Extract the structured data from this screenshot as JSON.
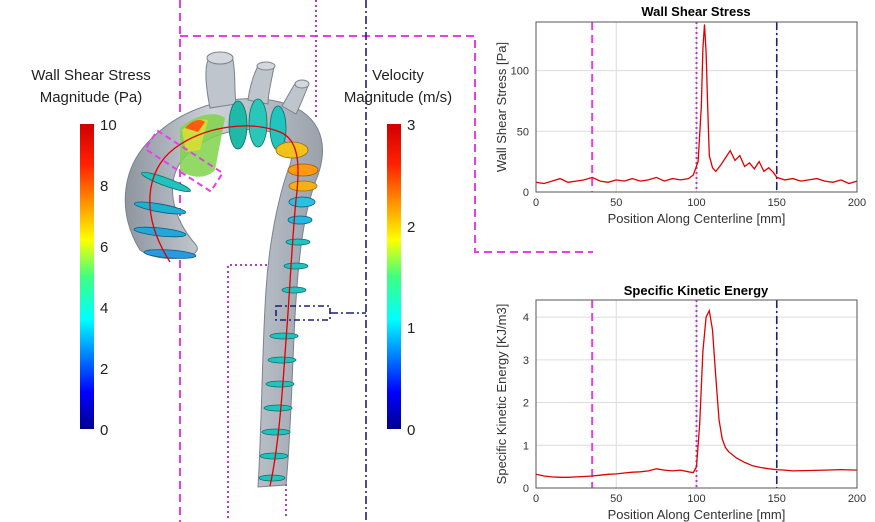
{
  "colors": {
    "guide_magenta": "#e83ee8",
    "guide_violet": "#b23ec8",
    "guide_navy": "#1f1f7a",
    "curve_red": "#e00000",
    "vessel_gray": "#b9bfc8"
  },
  "colorbars": {
    "wss": {
      "title_line1": "Wall Shear Stress",
      "title_line2": "Magnitude (Pa)",
      "ticks": [
        "10",
        "8",
        "6",
        "4",
        "2",
        "0"
      ],
      "range": [
        0,
        10
      ]
    },
    "velocity": {
      "title_line1": "Velocity",
      "title_line2": "Magnitude (m/s)",
      "ticks": [
        "3",
        "2",
        "1",
        "0"
      ],
      "range": [
        0,
        3
      ]
    }
  },
  "chart_data": [
    {
      "type": "line",
      "title": "Wall Shear Stress",
      "xlabel": "Position Along Centerline [mm]",
      "ylabel": "Wall Shear Stress [Pa]",
      "xlim": [
        0,
        200
      ],
      "ylim": [
        0,
        140
      ],
      "xticks": [
        "0",
        "50",
        "100",
        "150",
        "200"
      ],
      "yticks": [
        "0",
        "50",
        "100"
      ],
      "grid": true,
      "markers": [
        {
          "x": 35,
          "style": "magenta-dash"
        },
        {
          "x": 100,
          "style": "violet-dot"
        },
        {
          "x": 150,
          "style": "navy-dashdot"
        }
      ],
      "x": [
        0,
        5,
        10,
        15,
        20,
        25,
        30,
        35,
        40,
        45,
        50,
        55,
        60,
        65,
        70,
        75,
        80,
        85,
        90,
        95,
        98,
        101,
        103,
        104,
        105,
        106,
        107,
        108,
        110,
        112,
        115,
        118,
        121,
        124,
        127,
        130,
        133,
        136,
        139,
        142,
        145,
        148,
        150,
        155,
        160,
        165,
        170,
        175,
        180,
        185,
        190,
        195,
        200
      ],
      "y": [
        8,
        7,
        9,
        11,
        8,
        9,
        10,
        12,
        9,
        8,
        10,
        9,
        11,
        9,
        10,
        12,
        9,
        11,
        10,
        11,
        14,
        25,
        70,
        118,
        138,
        115,
        70,
        30,
        20,
        17,
        22,
        28,
        34,
        26,
        30,
        21,
        24,
        19,
        25,
        17,
        20,
        16,
        12,
        10,
        11,
        9,
        10,
        11,
        9,
        8,
        10,
        7,
        9
      ]
    },
    {
      "type": "line",
      "title": "Specific Kinetic Energy",
      "xlabel": "Position Along Centerline [mm]",
      "ylabel": "Specific Kinetic Energy [KJ/m3]",
      "xlim": [
        0,
        200
      ],
      "ylim": [
        0,
        4.4
      ],
      "xticks": [
        "0",
        "50",
        "100",
        "150",
        "200"
      ],
      "yticks": [
        "0",
        "1",
        "2",
        "3",
        "4"
      ],
      "grid": true,
      "markers": [
        {
          "x": 35,
          "style": "magenta-dash"
        },
        {
          "x": 100,
          "style": "violet-dot"
        },
        {
          "x": 150,
          "style": "navy-dashdot"
        }
      ],
      "x": [
        0,
        5,
        10,
        15,
        20,
        25,
        30,
        35,
        40,
        45,
        50,
        55,
        60,
        65,
        70,
        75,
        80,
        85,
        90,
        95,
        98,
        100,
        102,
        104,
        106,
        108,
        110,
        112,
        114,
        116,
        118,
        120,
        125,
        130,
        135,
        140,
        145,
        150,
        155,
        160,
        170,
        180,
        190,
        200
      ],
      "y": [
        0.32,
        0.28,
        0.26,
        0.25,
        0.25,
        0.26,
        0.27,
        0.28,
        0.3,
        0.32,
        0.33,
        0.35,
        0.37,
        0.38,
        0.4,
        0.45,
        0.42,
        0.4,
        0.42,
        0.38,
        0.36,
        0.5,
        1.5,
        3.2,
        4.0,
        4.15,
        3.7,
        2.6,
        1.6,
        1.15,
        0.95,
        0.85,
        0.7,
        0.6,
        0.52,
        0.48,
        0.45,
        0.43,
        0.42,
        0.4,
        0.41,
        0.42,
        0.43,
        0.42
      ]
    }
  ]
}
